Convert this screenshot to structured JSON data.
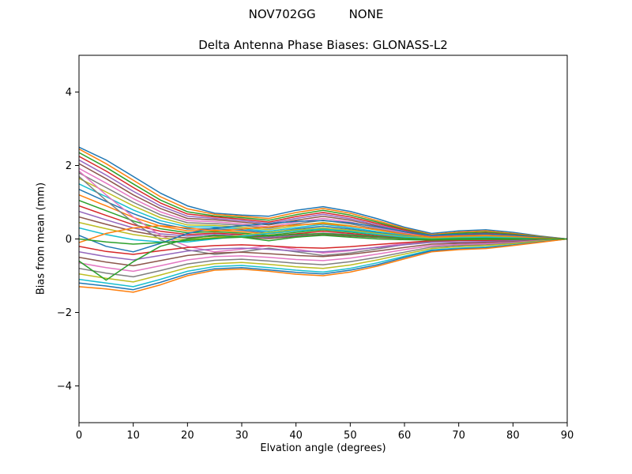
{
  "background": "#ffffff",
  "header": {
    "title_left": "NOV702GG",
    "title_right": "NONE"
  },
  "chart_data": {
    "type": "line",
    "title": "Delta Antenna Phase Biases: GLONASS-L2",
    "xlabel": "Elvation angle (degrees)",
    "ylabel": "Bias from mean (mm)",
    "xlim": [
      0,
      90
    ],
    "ylim": [
      -5,
      5
    ],
    "xticks": [
      0,
      10,
      20,
      30,
      40,
      50,
      60,
      70,
      80,
      90
    ],
    "yticks": [
      -4,
      -2,
      0,
      2,
      4
    ],
    "grid": false,
    "legend": false,
    "x": [
      0,
      5,
      10,
      15,
      20,
      25,
      30,
      35,
      40,
      45,
      50,
      55,
      60,
      65,
      70,
      75,
      80,
      85,
      90
    ],
    "series": [
      {
        "name": "line-01",
        "color": "#1f77b4",
        "values": [
          2.5,
          2.15,
          1.7,
          1.25,
          0.9,
          0.7,
          0.65,
          0.62,
          0.78,
          0.88,
          0.75,
          0.55,
          0.32,
          0.15,
          0.22,
          0.25,
          0.18,
          0.08,
          0.0
        ]
      },
      {
        "name": "line-02",
        "color": "#ff7f0e",
        "values": [
          2.45,
          2.05,
          1.6,
          1.15,
          0.82,
          0.67,
          0.62,
          0.56,
          0.72,
          0.83,
          0.7,
          0.5,
          0.29,
          0.12,
          0.19,
          0.22,
          0.15,
          0.07,
          0.0
        ]
      },
      {
        "name": "line-03",
        "color": "#2ca02c",
        "values": [
          2.35,
          1.95,
          1.5,
          1.06,
          0.74,
          0.63,
          0.58,
          0.51,
          0.66,
          0.78,
          0.65,
          0.46,
          0.26,
          0.1,
          0.16,
          0.19,
          0.13,
          0.06,
          0.0
        ]
      },
      {
        "name": "line-04",
        "color": "#d62728",
        "values": [
          2.25,
          1.85,
          1.4,
          0.98,
          0.68,
          0.6,
          0.54,
          0.46,
          0.61,
          0.72,
          0.6,
          0.42,
          0.24,
          0.08,
          0.13,
          0.16,
          0.11,
          0.05,
          0.0
        ]
      },
      {
        "name": "line-05",
        "color": "#9467bd",
        "values": [
          2.15,
          1.74,
          1.3,
          0.9,
          0.62,
          0.56,
          0.5,
          0.42,
          0.56,
          0.67,
          0.55,
          0.38,
          0.21,
          0.07,
          0.11,
          0.14,
          0.1,
          0.04,
          0.0
        ]
      },
      {
        "name": "line-06",
        "color": "#8c564b",
        "values": [
          2.05,
          1.64,
          1.2,
          0.83,
          0.56,
          0.52,
          0.46,
          0.38,
          0.51,
          0.62,
          0.51,
          0.35,
          0.19,
          0.05,
          0.09,
          0.12,
          0.08,
          0.04,
          0.0
        ]
      },
      {
        "name": "line-07",
        "color": "#e377c2",
        "values": [
          1.92,
          1.52,
          1.1,
          0.74,
          0.5,
          0.47,
          0.41,
          0.33,
          0.46,
          0.56,
          0.46,
          0.31,
          0.16,
          0.04,
          0.08,
          0.1,
          0.07,
          0.03,
          0.0
        ]
      },
      {
        "name": "line-08",
        "color": "#7f7f7f",
        "values": [
          1.8,
          1.4,
          1.0,
          0.66,
          0.44,
          0.42,
          0.37,
          0.29,
          0.41,
          0.51,
          0.41,
          0.27,
          0.14,
          0.03,
          0.06,
          0.08,
          0.06,
          0.03,
          0.0
        ]
      },
      {
        "name": "line-09",
        "color": "#bcbd22",
        "values": [
          1.65,
          1.28,
          0.9,
          0.58,
          0.38,
          0.37,
          0.32,
          0.25,
          0.36,
          0.45,
          0.36,
          0.24,
          0.12,
          0.02,
          0.05,
          0.07,
          0.05,
          0.02,
          0.0
        ]
      },
      {
        "name": "line-10",
        "color": "#17becf",
        "values": [
          1.5,
          1.15,
          0.79,
          0.5,
          0.33,
          0.33,
          0.28,
          0.21,
          0.31,
          0.4,
          0.31,
          0.2,
          0.1,
          0.01,
          0.04,
          0.06,
          0.04,
          0.02,
          0.0
        ]
      },
      {
        "name": "line-11",
        "color": "#1f77b4",
        "values": [
          1.35,
          1.02,
          0.69,
          0.42,
          0.27,
          0.28,
          0.24,
          0.17,
          0.27,
          0.35,
          0.27,
          0.17,
          0.08,
          0.01,
          0.03,
          0.05,
          0.03,
          0.01,
          0.0
        ]
      },
      {
        "name": "line-12",
        "color": "#ff7f0e",
        "values": [
          1.2,
          0.9,
          0.59,
          0.35,
          0.22,
          0.24,
          0.2,
          0.14,
          0.22,
          0.3,
          0.23,
          0.14,
          0.06,
          0.0,
          0.02,
          0.04,
          0.03,
          0.01,
          0.0
        ]
      },
      {
        "name": "line-13",
        "color": "#2ca02c",
        "values": [
          1.05,
          0.77,
          0.49,
          0.28,
          0.17,
          0.2,
          0.16,
          0.1,
          0.18,
          0.25,
          0.19,
          0.11,
          0.05,
          0.0,
          0.02,
          0.03,
          0.02,
          0.01,
          0.0
        ]
      },
      {
        "name": "line-14",
        "color": "#d62728",
        "values": [
          0.9,
          0.64,
          0.39,
          0.21,
          0.12,
          0.16,
          0.12,
          0.07,
          0.14,
          0.21,
          0.15,
          0.08,
          0.03,
          -0.01,
          0.01,
          0.02,
          0.01,
          0.0,
          0.0
        ]
      },
      {
        "name": "line-15",
        "color": "#9467bd",
        "values": [
          0.75,
          0.52,
          0.3,
          0.14,
          0.08,
          0.12,
          0.09,
          0.04,
          0.1,
          0.16,
          0.12,
          0.06,
          0.02,
          -0.01,
          0.0,
          0.02,
          0.01,
          0.0,
          0.0
        ]
      },
      {
        "name": "line-16",
        "color": "#8c564b",
        "values": [
          0.6,
          0.4,
          0.21,
          0.08,
          0.03,
          0.08,
          0.05,
          0.01,
          0.07,
          0.12,
          0.08,
          0.04,
          0.01,
          -0.02,
          0.0,
          0.01,
          0.01,
          0.0,
          0.0
        ]
      },
      {
        "name": "line-17",
        "color": "#e377c2",
        "values": [
          1.85,
          1.2,
          0.6,
          0.1,
          -0.2,
          -0.35,
          -0.28,
          -0.18,
          -0.28,
          -0.38,
          -0.32,
          -0.22,
          -0.12,
          -0.05,
          -0.08,
          -0.1,
          -0.07,
          -0.03,
          0.0
        ]
      },
      {
        "name": "line-18",
        "color": "#7f7f7f",
        "values": [
          1.7,
          1.05,
          0.45,
          -0.02,
          -0.3,
          -0.42,
          -0.35,
          -0.25,
          -0.35,
          -0.45,
          -0.38,
          -0.27,
          -0.15,
          -0.07,
          -0.1,
          -0.12,
          -0.08,
          -0.04,
          0.0
        ]
      },
      {
        "name": "line-19",
        "color": "#bcbd22",
        "values": [
          0.45,
          0.28,
          0.12,
          0.02,
          -0.02,
          0.04,
          0.1,
          0.18,
          0.25,
          0.3,
          0.24,
          0.15,
          0.07,
          0.02,
          0.04,
          0.05,
          0.04,
          0.02,
          0.0
        ]
      },
      {
        "name": "line-20",
        "color": "#17becf",
        "values": [
          0.3,
          0.12,
          -0.02,
          -0.08,
          -0.08,
          0.0,
          0.08,
          0.15,
          0.22,
          0.27,
          0.21,
          0.12,
          0.05,
          0.0,
          0.03,
          0.04,
          0.03,
          0.01,
          0.0
        ]
      },
      {
        "name": "line-21",
        "color": "#1f77b4",
        "values": [
          0.1,
          -0.2,
          -0.35,
          -0.12,
          0.15,
          0.3,
          0.36,
          0.42,
          0.48,
          0.5,
          0.44,
          0.33,
          0.2,
          0.1,
          0.13,
          0.14,
          0.1,
          0.05,
          0.0
        ]
      },
      {
        "name": "line-22",
        "color": "#ff7f0e",
        "values": [
          -0.1,
          0.15,
          0.3,
          0.36,
          0.3,
          0.22,
          0.27,
          0.33,
          0.38,
          0.42,
          0.35,
          0.25,
          0.13,
          0.05,
          0.08,
          0.1,
          0.07,
          0.03,
          0.0
        ]
      },
      {
        "name": "line-23",
        "color": "#2ca02c",
        "values": [
          0.0,
          -0.08,
          -0.14,
          -0.1,
          -0.04,
          0.02,
          0.05,
          0.08,
          0.12,
          0.15,
          0.11,
          0.06,
          0.02,
          -0.01,
          0.01,
          0.02,
          0.01,
          0.0,
          0.0
        ]
      },
      {
        "name": "line-24",
        "color": "#d62728",
        "values": [
          -0.2,
          -0.34,
          -0.42,
          -0.32,
          -0.23,
          -0.18,
          -0.16,
          -0.19,
          -0.23,
          -0.25,
          -0.21,
          -0.15,
          -0.1,
          -0.05,
          -0.04,
          -0.04,
          -0.03,
          -0.01,
          0.0
        ]
      },
      {
        "name": "line-25",
        "color": "#9467bd",
        "values": [
          -0.35,
          -0.48,
          -0.57,
          -0.45,
          -0.33,
          -0.27,
          -0.25,
          -0.28,
          -0.33,
          -0.35,
          -0.3,
          -0.23,
          -0.16,
          -0.09,
          -0.08,
          -0.07,
          -0.05,
          -0.02,
          0.0
        ]
      },
      {
        "name": "line-26",
        "color": "#8c564b",
        "values": [
          -0.5,
          -0.63,
          -0.73,
          -0.59,
          -0.45,
          -0.38,
          -0.36,
          -0.4,
          -0.45,
          -0.48,
          -0.42,
          -0.33,
          -0.23,
          -0.14,
          -0.12,
          -0.1,
          -0.07,
          -0.03,
          0.0
        ]
      },
      {
        "name": "line-27",
        "color": "#e377c2",
        "values": [
          -0.65,
          -0.78,
          -0.88,
          -0.73,
          -0.57,
          -0.48,
          -0.46,
          -0.5,
          -0.56,
          -0.59,
          -0.52,
          -0.41,
          -0.29,
          -0.18,
          -0.15,
          -0.13,
          -0.09,
          -0.04,
          0.0
        ]
      },
      {
        "name": "line-28",
        "color": "#7f7f7f",
        "values": [
          -0.8,
          -0.93,
          -1.03,
          -0.86,
          -0.68,
          -0.58,
          -0.55,
          -0.6,
          -0.66,
          -0.7,
          -0.62,
          -0.5,
          -0.36,
          -0.22,
          -0.18,
          -0.16,
          -0.11,
          -0.05,
          0.0
        ]
      },
      {
        "name": "line-29",
        "color": "#bcbd22",
        "values": [
          -0.95,
          -1.07,
          -1.17,
          -0.98,
          -0.78,
          -0.67,
          -0.64,
          -0.69,
          -0.76,
          -0.8,
          -0.71,
          -0.57,
          -0.41,
          -0.26,
          -0.21,
          -0.18,
          -0.13,
          -0.06,
          0.0
        ]
      },
      {
        "name": "line-30",
        "color": "#17becf",
        "values": [
          -1.1,
          -1.2,
          -1.3,
          -1.1,
          -0.88,
          -0.75,
          -0.72,
          -0.78,
          -0.85,
          -0.9,
          -0.8,
          -0.65,
          -0.47,
          -0.3,
          -0.25,
          -0.22,
          -0.16,
          -0.08,
          0.0
        ]
      },
      {
        "name": "line-31",
        "color": "#1f77b4",
        "values": [
          -1.2,
          -1.28,
          -1.38,
          -1.18,
          -0.95,
          -0.81,
          -0.78,
          -0.84,
          -0.91,
          -0.95,
          -0.85,
          -0.7,
          -0.5,
          -0.32,
          -0.27,
          -0.24,
          -0.17,
          -0.08,
          0.0
        ]
      },
      {
        "name": "line-32",
        "color": "#ff7f0e",
        "values": [
          -1.3,
          -1.36,
          -1.45,
          -1.25,
          -1.0,
          -0.85,
          -0.82,
          -0.88,
          -0.96,
          -1.0,
          -0.9,
          -0.74,
          -0.54,
          -0.35,
          -0.29,
          -0.26,
          -0.18,
          -0.09,
          0.0
        ]
      },
      {
        "name": "line-33",
        "color": "#2ca02c",
        "values": [
          -0.6,
          -1.12,
          -0.62,
          -0.2,
          0.0,
          0.1,
          0.05,
          -0.05,
          0.05,
          0.1,
          0.05,
          0.0,
          -0.02,
          -0.03,
          -0.02,
          -0.01,
          -0.01,
          0.0,
          0.0
        ]
      }
    ]
  }
}
